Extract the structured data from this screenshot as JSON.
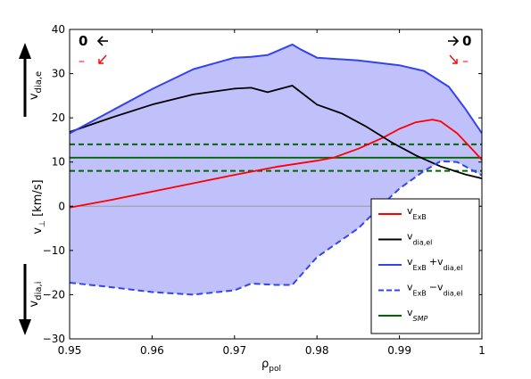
{
  "chart_data": {
    "type": "line",
    "title": "",
    "xlabel": "ρ",
    "xlabel_sub": "pol",
    "ylabel": "v",
    "ylabel_sub": "⊥",
    "ylabel_unit": " [km/s]",
    "xlim": [
      0.95,
      1.0
    ],
    "ylim": [
      -30,
      40
    ],
    "xticks": [
      0.95,
      0.96,
      0.97,
      0.98,
      0.99,
      1.0
    ],
    "xtick_labels": [
      "0.95",
      "0.96",
      "0.97",
      "0.98",
      "0.99",
      "1"
    ],
    "yticks": [
      -30,
      -20,
      -10,
      0,
      10,
      20,
      30,
      40
    ],
    "ytick_labels": [
      "−30",
      "−20",
      "−10",
      "0",
      "10",
      "20",
      "30",
      "40"
    ],
    "grid": false,
    "legend_position": "bottom-right",
    "annotations": {
      "upper_label": "v",
      "upper_label_sub": "dia,e",
      "lower_label": "v",
      "lower_label_sub": "dia,i",
      "left_zero": "0",
      "left_minus": "–",
      "right_zero": "0",
      "right_minus": "–"
    },
    "colors": {
      "exb": "#ff0000",
      "dia": "#000000",
      "sum": "#3344ee",
      "fill": "#c0c0fb",
      "smp": "#006600",
      "zero_line": "#999999"
    },
    "series": [
      {
        "key": "exb",
        "legend_main": "v",
        "legend_sub": "ExB",
        "legend_rest": "",
        "legend_sub2": "",
        "x": [
          0.95,
          0.955,
          0.96,
          0.965,
          0.97,
          0.975,
          0.98,
          0.982,
          0.985,
          0.988,
          0.99,
          0.992,
          0.994,
          0.995,
          0.997,
          0.999,
          1.0
        ],
        "y": [
          -0.3,
          1.4,
          3.3,
          5.2,
          7.1,
          8.9,
          10.3,
          11.0,
          13.0,
          15.5,
          17.5,
          19.0,
          19.6,
          19.2,
          16.5,
          12.5,
          10.5
        ]
      },
      {
        "key": "dia",
        "legend_main": "v",
        "legend_sub": "dia,el",
        "legend_rest": "",
        "legend_sub2": "",
        "x": [
          0.95,
          0.955,
          0.96,
          0.965,
          0.97,
          0.972,
          0.974,
          0.977,
          0.98,
          0.983,
          0.986,
          0.989,
          0.992,
          0.995,
          0.998,
          1.0
        ],
        "y": [
          16.8,
          20.0,
          23.0,
          25.3,
          26.6,
          26.8,
          25.8,
          27.3,
          23.0,
          21.0,
          18.0,
          14.5,
          11.5,
          9.0,
          7.2,
          6.3
        ]
      },
      {
        "key": "sum",
        "legend_main": "v",
        "legend_sub": "ExB",
        "legend_rest": "+v",
        "legend_sub2": "dia,el",
        "x": [
          0.95,
          0.955,
          0.96,
          0.965,
          0.97,
          0.972,
          0.974,
          0.977,
          0.978,
          0.98,
          0.985,
          0.99,
          0.993,
          0.996,
          0.998,
          1.0
        ],
        "y": [
          16.5,
          21.5,
          26.5,
          31.0,
          33.6,
          33.8,
          34.2,
          36.6,
          35.5,
          33.6,
          33.0,
          31.9,
          30.6,
          27.0,
          22.0,
          16.5
        ]
      },
      {
        "key": "diff",
        "legend_main": "v",
        "legend_sub": "ExB",
        "legend_rest": "−v",
        "legend_sub2": "dia,el",
        "x": [
          0.95,
          0.955,
          0.96,
          0.965,
          0.97,
          0.972,
          0.975,
          0.977,
          0.98,
          0.985,
          0.988,
          0.99,
          0.993,
          0.995,
          0.997,
          1.0
        ],
        "y": [
          -17.3,
          -18.3,
          -19.4,
          -20.0,
          -19.0,
          -17.5,
          -17.8,
          -17.8,
          -11.5,
          -5.0,
          0.5,
          4.0,
          8.0,
          10.2,
          10.0,
          7.0
        ]
      },
      {
        "key": "smp",
        "legend_main": "v",
        "legend_sub": "SMP",
        "legend_rest": "",
        "legend_sub2": "",
        "x": [
          0.95,
          1.0
        ],
        "y": [
          11.0,
          11.0
        ]
      }
    ],
    "smp_band": {
      "upper": 14.0,
      "lower": 8.0
    }
  }
}
